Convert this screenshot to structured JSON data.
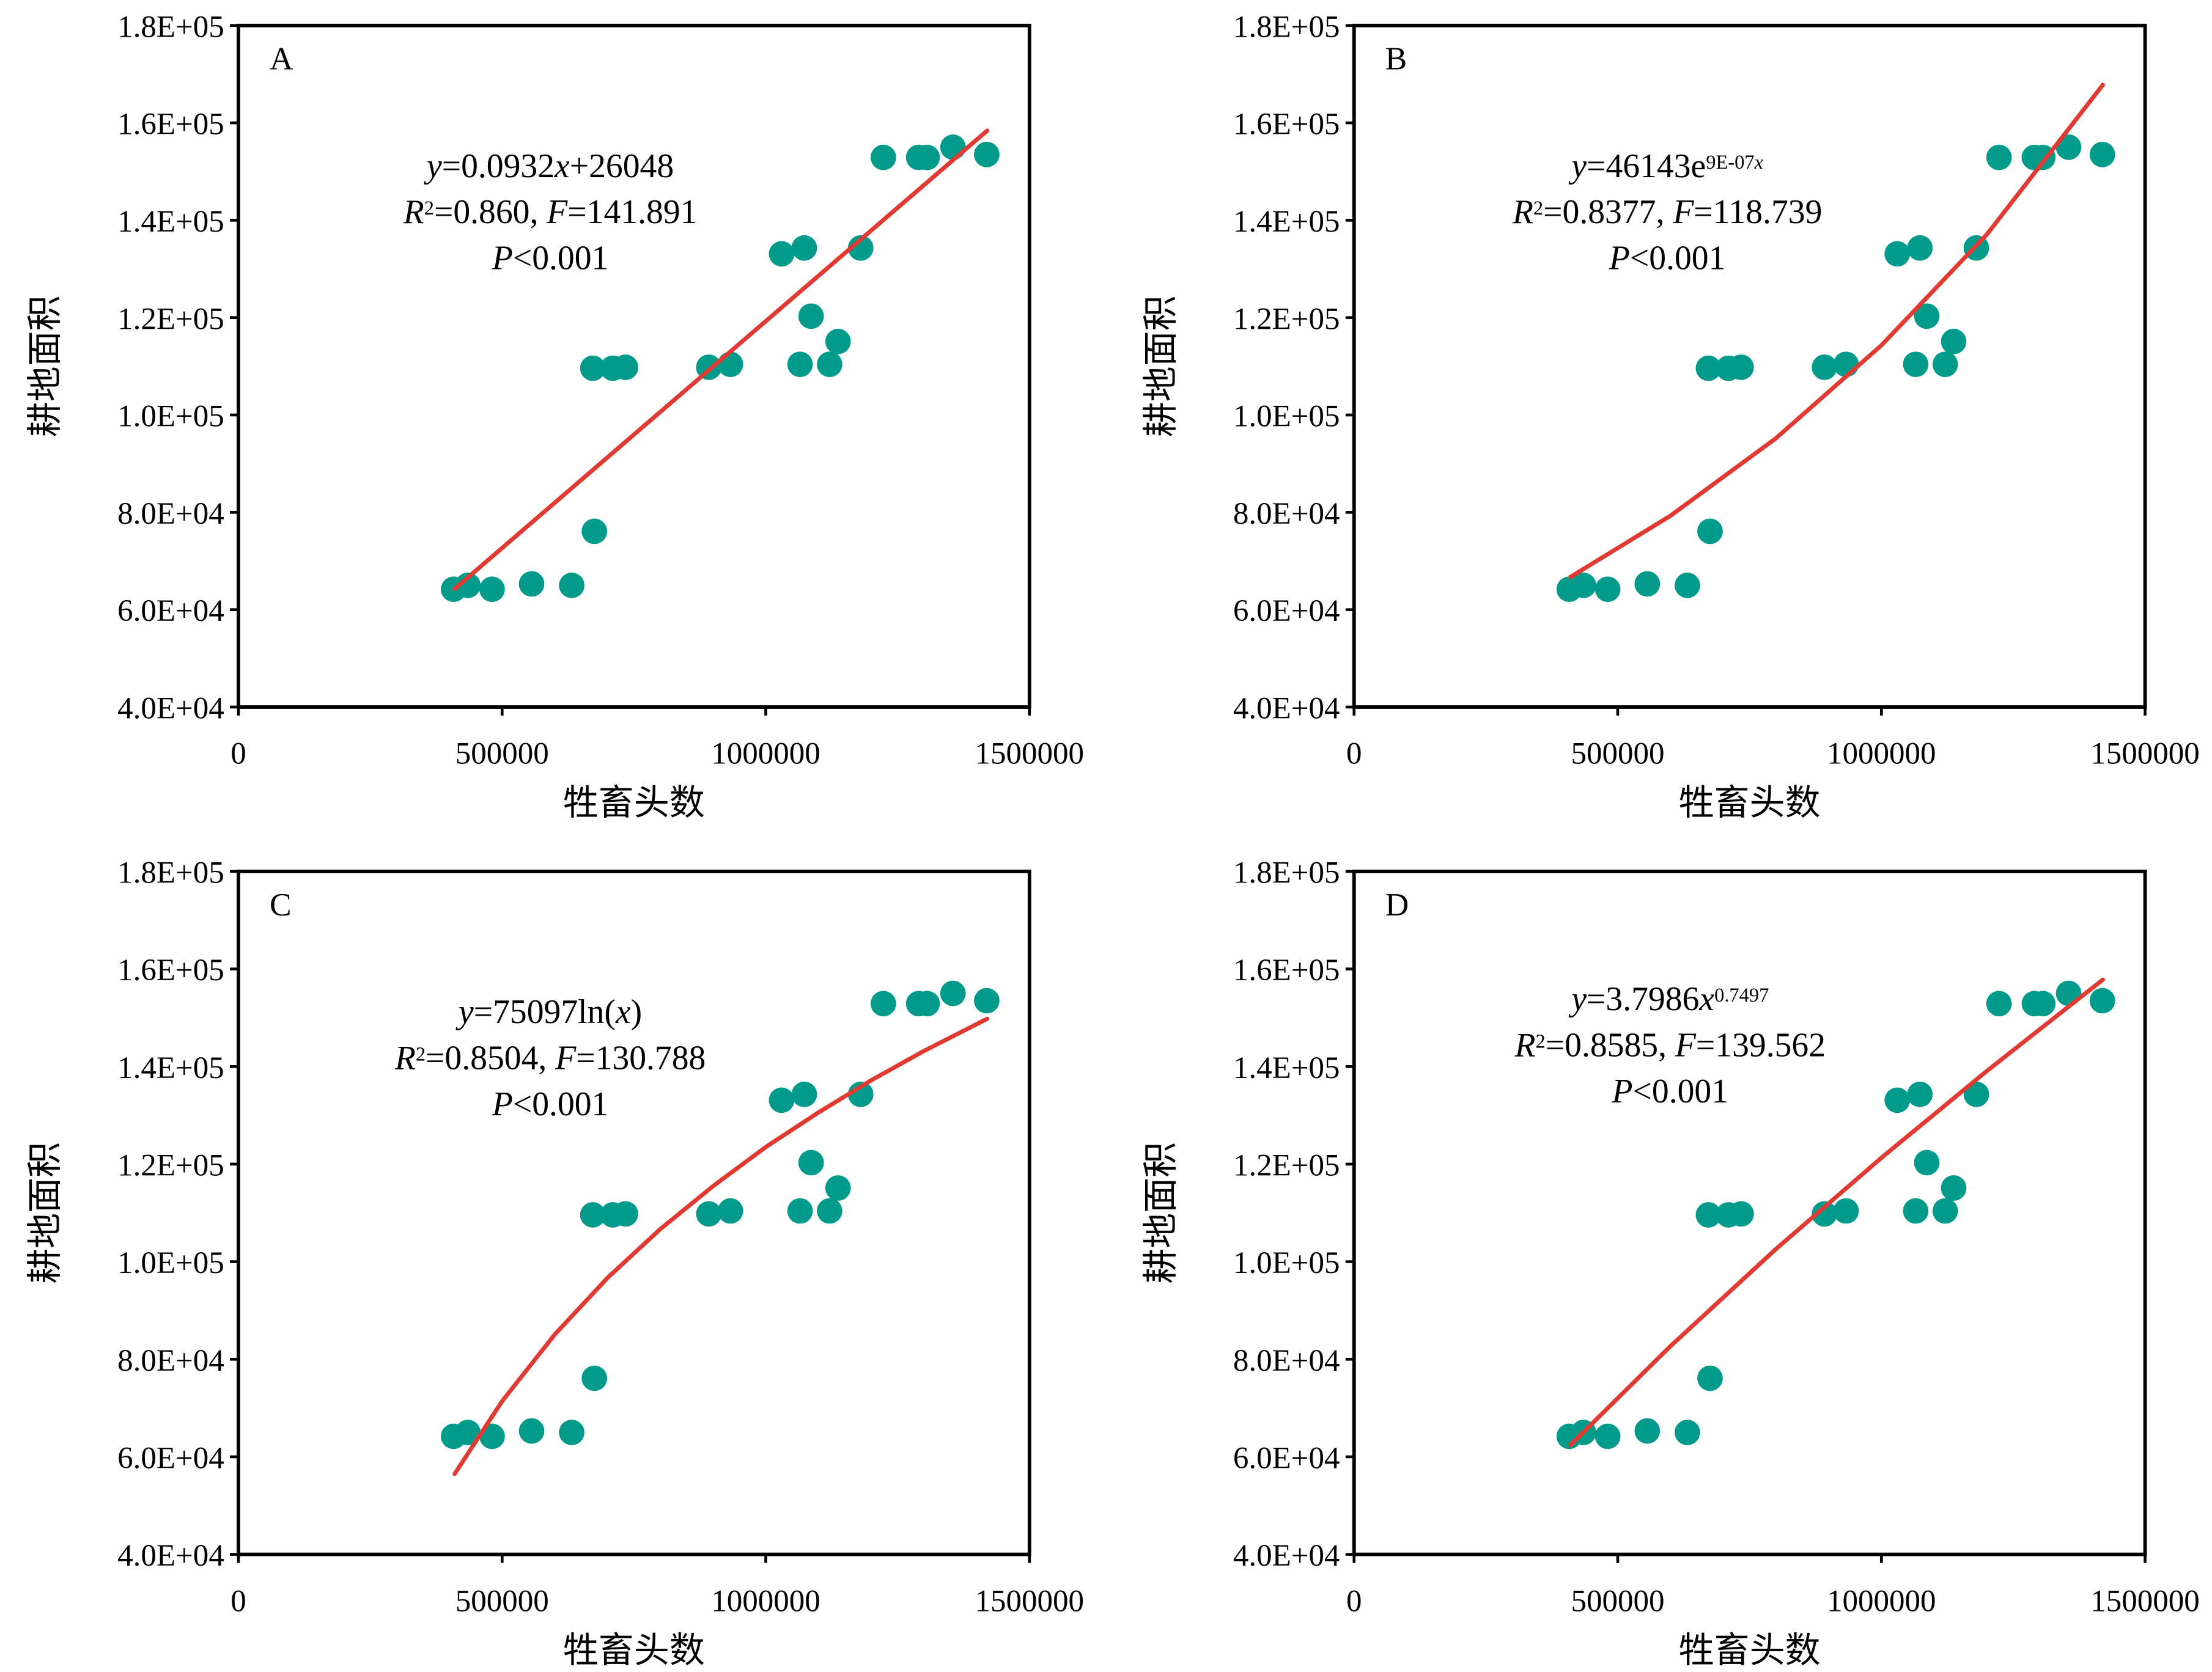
{
  "chart_data": {
    "type": "scatter",
    "shared": {
      "xlabel": "牲畜头数",
      "ylabel": "耕地面积",
      "xlim": [
        0,
        1500000
      ],
      "ylim": [
        40000,
        180000
      ],
      "xticks": [
        0,
        500000,
        1000000,
        1500000
      ],
      "xtick_labels": [
        "0",
        "500000",
        "1000000",
        "1500000"
      ],
      "yticks": [
        40000,
        60000,
        80000,
        100000,
        120000,
        140000,
        160000,
        180000
      ],
      "ytick_labels": [
        "4.0E+04",
        "6.0E+04",
        "8.0E+04",
        "1.0E+05",
        "1.2E+05",
        "1.4E+05",
        "1.6E+05",
        "1.8E+05"
      ],
      "point_color": "#009B8A",
      "fit_color": "#E03A32",
      "points": [
        [
          408000,
          64200
        ],
        [
          435000,
          65000
        ],
        [
          481000,
          64200
        ],
        [
          556000,
          65300
        ],
        [
          632000,
          65000
        ],
        [
          675000,
          76100
        ],
        [
          672000,
          109600
        ],
        [
          710000,
          109600
        ],
        [
          734000,
          109800
        ],
        [
          892000,
          109800
        ],
        [
          933000,
          110400
        ],
        [
          1030000,
          133100
        ],
        [
          1073000,
          134300
        ],
        [
          1086000,
          120300
        ],
        [
          1065000,
          110400
        ],
        [
          1121000,
          110400
        ],
        [
          1137000,
          115100
        ],
        [
          1180000,
          134300
        ],
        [
          1223000,
          152900
        ],
        [
          1290000,
          152900
        ],
        [
          1306000,
          152900
        ],
        [
          1355000,
          155000
        ],
        [
          1419000,
          153500
        ]
      ]
    },
    "panels": [
      {
        "label": "A",
        "fit": "linear",
        "fit_curve": [
          [
            410000,
            64260
          ],
          [
            1420000,
            158400
          ]
        ],
        "equation": [
          [
            {
              "t": "y",
              "i": true
            },
            {
              "t": "=0.0932"
            },
            {
              "t": "x",
              "i": true
            },
            {
              "t": "+26048"
            }
          ],
          [
            {
              "t": "R",
              "i": true
            },
            {
              "t": "2",
              "sup": true
            },
            {
              "t": "=0.860, "
            },
            {
              "t": "F",
              "i": true
            },
            {
              "t": "=141.891"
            }
          ],
          [
            {
              "t": "P",
              "i": true
            },
            {
              "t": "<0.001"
            }
          ]
        ]
      },
      {
        "label": "B",
        "fit": "exponential",
        "fit_curve": [
          [
            410000,
            66700
          ],
          [
            600000,
            79300
          ],
          [
            800000,
            95200
          ],
          [
            1000000,
            114300
          ],
          [
            1200000,
            137100
          ],
          [
            1420000,
            167800
          ]
        ],
        "equation": [
          [
            {
              "t": "y",
              "i": true
            },
            {
              "t": "=46143e"
            },
            {
              "t": "9E-07",
              "sup": true
            },
            {
              "t": "x",
              "i": true,
              "sup": true
            }
          ],
          [
            {
              "t": "R",
              "i": true
            },
            {
              "t": "2",
              "sup": true
            },
            {
              "t": "=0.8377, "
            },
            {
              "t": "F",
              "i": true
            },
            {
              "t": "=118.739"
            }
          ],
          [
            {
              "t": "P",
              "i": true
            },
            {
              "t": "<0.001"
            }
          ]
        ]
      },
      {
        "label": "C",
        "fit": "logarithmic",
        "fit_curve": [
          [
            410000,
            56500
          ],
          [
            500000,
            71400
          ],
          [
            600000,
            85100
          ],
          [
            700000,
            96700
          ],
          [
            800000,
            106700
          ],
          [
            900000,
            115500
          ],
          [
            1000000,
            123500
          ],
          [
            1100000,
            130600
          ],
          [
            1200000,
            137200
          ],
          [
            1300000,
            143200
          ],
          [
            1420000,
            149800
          ]
        ],
        "equation": [
          [
            {
              "t": "y",
              "i": true
            },
            {
              "t": "=75097ln("
            },
            {
              "t": "x",
              "i": true
            },
            {
              "t": ")"
            }
          ],
          [
            {
              "t": "R",
              "i": true
            },
            {
              "t": "2",
              "sup": true
            },
            {
              "t": "=0.8504, "
            },
            {
              "t": "F",
              "i": true
            },
            {
              "t": "=130.788"
            }
          ],
          [
            {
              "t": "P",
              "i": true
            },
            {
              "t": "<0.001"
            }
          ]
        ]
      },
      {
        "label": "D",
        "fit": "power",
        "fit_curve": [
          [
            410000,
            62400
          ],
          [
            600000,
            82700
          ],
          [
            800000,
            102600
          ],
          [
            1000000,
            121300
          ],
          [
            1200000,
            139100
          ],
          [
            1420000,
            157800
          ]
        ],
        "equation": [
          [
            {
              "t": "y",
              "i": true
            },
            {
              "t": "=3.7986"
            },
            {
              "t": "x",
              "i": true
            },
            {
              "t": "0.7497",
              "sup": true
            }
          ],
          [
            {
              "t": "R",
              "i": true
            },
            {
              "t": "2",
              "sup": true
            },
            {
              "t": "=0.8585, "
            },
            {
              "t": "F",
              "i": true
            },
            {
              "t": "=139.562"
            }
          ],
          [
            {
              "t": "P",
              "i": true
            },
            {
              "t": "<0.001"
            }
          ]
        ]
      }
    ]
  }
}
